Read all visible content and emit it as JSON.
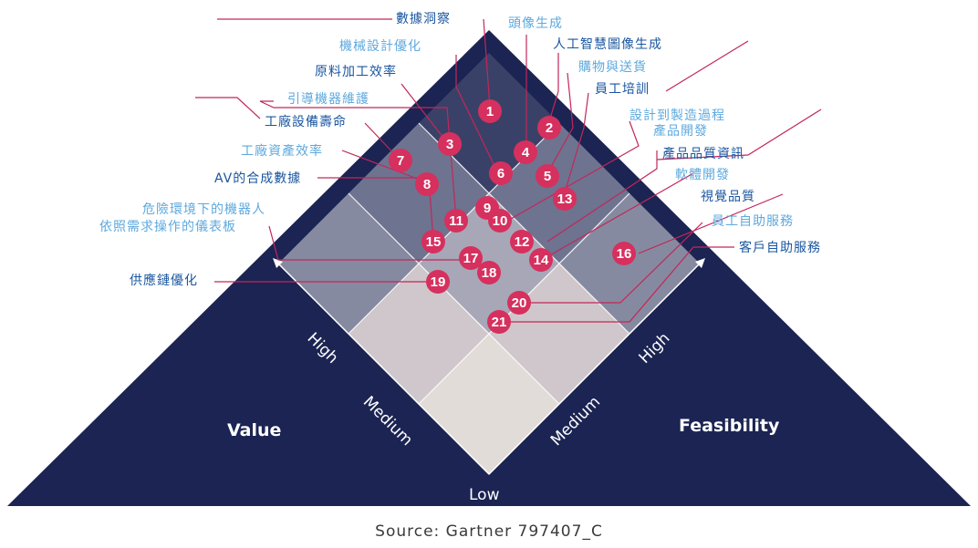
{
  "source": "Source: Gartner 797407_C",
  "axes": {
    "value": "Value",
    "feasibility": "Feasibility",
    "low": "Low",
    "high": "High",
    "medium": "Medium"
  },
  "colors": {
    "pyramid": "#1b2452",
    "marker": "#d6305e",
    "leader": "#c2275a"
  },
  "markers": [
    "1",
    "2",
    "3",
    "4",
    "5",
    "6",
    "7",
    "8",
    "9",
    "10",
    "11",
    "12",
    "13",
    "14",
    "15",
    "16",
    "17",
    "18",
    "19",
    "20",
    "21"
  ],
  "labels": {
    "data_insights": "數據洞察",
    "mech_design": "機械設計優化",
    "avatar_gen": "頭像生成",
    "ai_image_gen": "人工智慧圖像生成",
    "shopping": "購物與送貨",
    "raw_material": "原料加工效率",
    "staff_training": "員工培訓",
    "guided_maintenance": "引導機器維護",
    "equipment_life": "工廠設備壽命",
    "design_to_mfg_1": "設計到製造過程",
    "design_to_mfg_2": "產品開發",
    "asset_efficiency": "工廠資產效率",
    "product_quality": "產品品質資訊",
    "software_dev": "軟體開發",
    "av_synthetic": "AV的合成數據",
    "visual_quality": "視覺品質",
    "hazard_1": "危險環境下的機器人",
    "hazard_2": "依照需求操作的儀表板",
    "employee_self": "員工自助服務",
    "customer_self": "客戶自助服務",
    "supply_chain": "供應鏈優化"
  }
}
